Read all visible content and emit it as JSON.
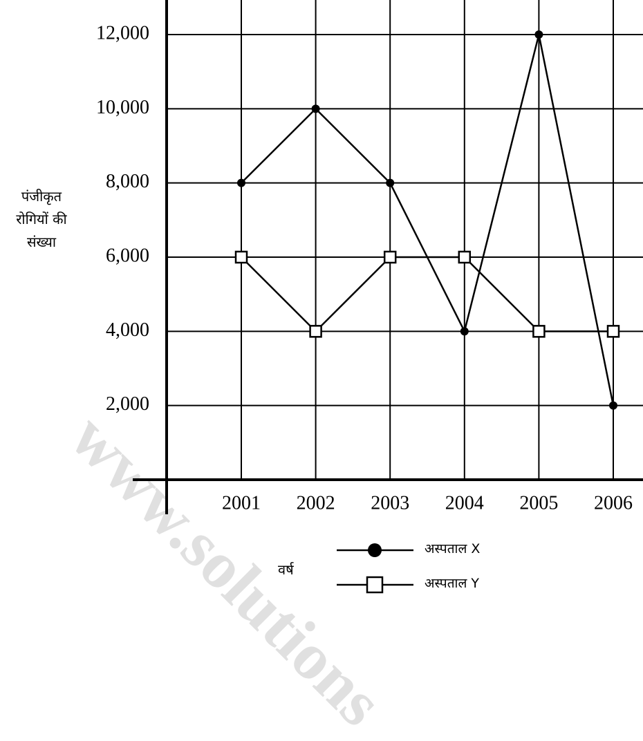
{
  "chart_data": {
    "type": "line",
    "categories": [
      "2001",
      "2002",
      "2003",
      "2004",
      "2005",
      "2006"
    ],
    "series": [
      {
        "name": "अस्पताल X",
        "marker": "filled-circle",
        "values": [
          8000,
          10000,
          8000,
          4000,
          12000,
          2000
        ]
      },
      {
        "name": "अस्पताल Y",
        "marker": "open-square",
        "values": [
          6000,
          4000,
          6000,
          6000,
          4000,
          4000
        ]
      }
    ],
    "y_ticks": [
      "2,000",
      "4,000",
      "6,000",
      "8,000",
      "10,000",
      "12,000"
    ],
    "y_tick_values": [
      2000,
      4000,
      6000,
      8000,
      10000,
      12000
    ],
    "ylabel_lines": [
      "पंजीकृत",
      "रोगियों की",
      "संख्या"
    ],
    "xlabel": "वर्ष",
    "ylim": [
      0,
      12000
    ],
    "grid": true,
    "legend_position": "bottom-center"
  },
  "watermark": "www.solutions",
  "colors": {
    "line": "#000000",
    "background": "#ffffff"
  }
}
